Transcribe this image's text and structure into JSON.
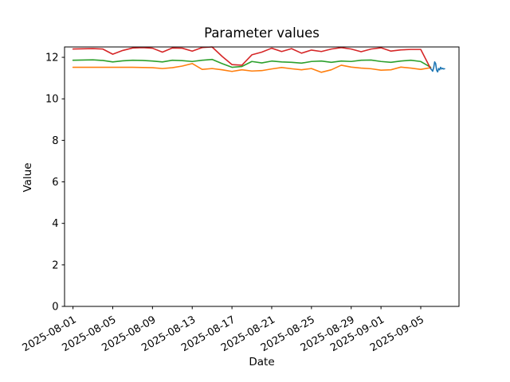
{
  "chart_data": {
    "type": "line",
    "title": "Parameter values",
    "xlabel": "Date",
    "ylabel": "Value",
    "grid": false,
    "legend": false,
    "background": "#ffffff",
    "frame_color": "#000000",
    "x_axis": {
      "unit": "days since 2025-08-01",
      "lim": [
        -0.85,
        38.85
      ],
      "tick_rotation_deg": 30,
      "ticks": [
        {
          "day": 0,
          "label": "2025-08-01"
        },
        {
          "day": 4,
          "label": "2025-08-05"
        },
        {
          "day": 8,
          "label": "2025-08-09"
        },
        {
          "day": 12,
          "label": "2025-08-13"
        },
        {
          "day": 16,
          "label": "2025-08-17"
        },
        {
          "day": 20,
          "label": "2025-08-21"
        },
        {
          "day": 24,
          "label": "2025-08-25"
        },
        {
          "day": 28,
          "label": "2025-08-29"
        },
        {
          "day": 31,
          "label": "2025-09-01"
        },
        {
          "day": 35,
          "label": "2025-09-05"
        }
      ]
    },
    "y_axis": {
      "lim": [
        0,
        12.5
      ],
      "ticks": [
        0,
        2,
        4,
        6,
        8,
        10,
        12
      ]
    },
    "series": [
      {
        "name": "orange-line",
        "color": "#ff7f0e",
        "x": [
          0,
          1,
          2,
          3,
          4,
          5,
          6,
          7,
          8,
          9,
          10,
          11,
          12,
          13,
          14,
          15,
          16,
          17,
          18,
          19,
          20,
          21,
          22,
          23,
          24,
          25,
          26,
          27,
          28,
          29,
          30,
          31,
          32,
          33,
          34,
          35,
          36
        ],
        "y": [
          11.52,
          11.52,
          11.52,
          11.52,
          11.52,
          11.52,
          11.52,
          11.51,
          11.5,
          11.46,
          11.5,
          11.58,
          11.7,
          11.42,
          11.46,
          11.4,
          11.32,
          11.4,
          11.34,
          11.36,
          11.44,
          11.51,
          11.45,
          11.4,
          11.46,
          11.28,
          11.4,
          11.62,
          11.53,
          11.48,
          11.45,
          11.38,
          11.4,
          11.53,
          11.48,
          11.42,
          11.5
        ]
      },
      {
        "name": "green-line",
        "color": "#2ca02c",
        "x": [
          0,
          1,
          2,
          3,
          4,
          5,
          6,
          7,
          8,
          9,
          10,
          11,
          12,
          13,
          14,
          15,
          16,
          17,
          18,
          19,
          20,
          21,
          22,
          23,
          24,
          25,
          26,
          27,
          28,
          29,
          30,
          31,
          32,
          33,
          34,
          35,
          36
        ],
        "y": [
          11.86,
          11.87,
          11.88,
          11.85,
          11.78,
          11.83,
          11.86,
          11.85,
          11.82,
          11.78,
          11.86,
          11.84,
          11.8,
          11.86,
          11.9,
          11.7,
          11.52,
          11.56,
          11.8,
          11.73,
          11.82,
          11.78,
          11.76,
          11.72,
          11.8,
          11.82,
          11.76,
          11.82,
          11.8,
          11.86,
          11.87,
          11.8,
          11.76,
          11.82,
          11.86,
          11.8,
          11.52
        ]
      },
      {
        "name": "red-line",
        "color": "#d62728",
        "x": [
          0,
          1,
          2,
          3,
          4,
          5,
          6,
          7,
          8,
          9,
          10,
          11,
          12,
          13,
          14,
          15,
          16,
          17,
          18,
          19,
          20,
          21,
          22,
          23,
          24,
          25,
          26,
          27,
          28,
          29,
          30,
          31,
          32,
          33,
          34,
          35,
          36
        ],
        "y": [
          12.4,
          12.41,
          12.42,
          12.4,
          12.15,
          12.33,
          12.45,
          12.47,
          12.44,
          12.25,
          12.45,
          12.44,
          12.3,
          12.47,
          12.5,
          12.05,
          11.65,
          11.62,
          12.12,
          12.25,
          12.44,
          12.28,
          12.42,
          12.2,
          12.35,
          12.28,
          12.4,
          12.47,
          12.4,
          12.27,
          12.4,
          12.46,
          12.3,
          12.36,
          12.38,
          12.38,
          11.45
        ]
      },
      {
        "name": "blue-line",
        "color": "#1f77b4",
        "x": [
          36.0,
          36.1,
          36.2,
          36.3,
          36.4,
          36.5,
          36.6,
          36.7,
          36.8,
          36.9,
          37.0,
          37.1,
          37.2,
          37.3,
          37.4
        ],
        "y": [
          11.46,
          11.4,
          11.33,
          11.5,
          11.78,
          11.7,
          11.38,
          11.3,
          11.46,
          11.4,
          11.52,
          11.44,
          11.47,
          11.44,
          11.45
        ]
      }
    ]
  }
}
